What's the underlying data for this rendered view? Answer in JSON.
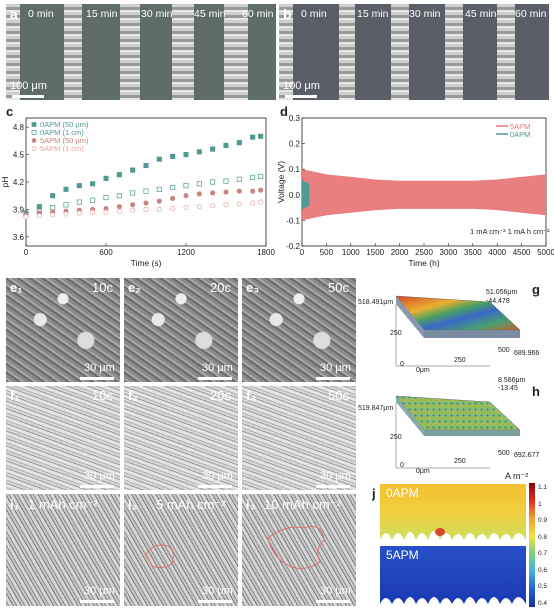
{
  "panel_a": {
    "label": "a",
    "times": [
      "0 min",
      "15 min",
      "30 min",
      "45 min",
      "60 min"
    ],
    "scale": "100 μm"
  },
  "panel_b": {
    "label": "b",
    "times": [
      "0 min",
      "15 min",
      "30 min",
      "45 min",
      "60 min"
    ],
    "scale": "100 μm"
  },
  "panel_c": {
    "label": "c"
  },
  "panel_d": {
    "label": "d",
    "note": "1 mA cm⁻² 1 mA h cm⁻²"
  },
  "panel_e": {
    "labels": [
      "e₁",
      "e₂",
      "e₃"
    ],
    "cycles": [
      "10c",
      "20c",
      "50c"
    ],
    "scale": "30 μm"
  },
  "panel_f": {
    "labels": [
      "f₁",
      "f₂",
      "f₃"
    ],
    "cycles": [
      "10c",
      "20c",
      "50c"
    ],
    "scale": "30 μm"
  },
  "panel_i": {
    "labels": [
      "i₁",
      "i₂",
      "i₃"
    ],
    "cycles": [
      "1 mAh cm⁻²",
      "5 mAh cm⁻²",
      "10 mAh cm⁻²"
    ],
    "scale": "30 μm"
  },
  "panel_g": {
    "label": "g",
    "z_top": "51.056μm",
    "z_bot": "-44.478",
    "y_max": "518.491μm",
    "x_max": "689.966",
    "y_mid": "250",
    "x_mid": "250",
    "x_end": "500",
    "origin": "0",
    "origin_unit": "0μm"
  },
  "panel_h": {
    "label": "h",
    "z_top": "8.586μm",
    "z_bot": "-13.45",
    "y_max": "519.847μm",
    "x_max": "692.677",
    "y_mid": "250",
    "x_mid": "250",
    "x_end": "500",
    "origin": "0",
    "origin_unit": "0μm"
  },
  "panel_j": {
    "label": "j",
    "top": "0APM",
    "bottom": "5APM",
    "unit": "A m⁻²",
    "scale_ticks": [
      "1.1",
      "1",
      "0.9",
      "0.8",
      "0.7",
      "0.6",
      "0.5",
      "0.4"
    ]
  },
  "chart_data": [
    {
      "type": "scatter",
      "panel": "c",
      "xlabel": "Time (s)",
      "ylabel": "pH",
      "xlim": [
        0,
        1800
      ],
      "ylim": [
        3.5,
        4.9
      ],
      "xticks": [
        0,
        600,
        1200,
        1800
      ],
      "yticks": [
        3.6,
        3.9,
        4.2,
        4.5,
        4.8
      ],
      "legend": "top-left",
      "series": [
        {
          "name": "0APM (50 μm)",
          "color": "#4e9a92",
          "marker": "square-filled",
          "x": [
            0,
            100,
            200,
            300,
            400,
            500,
            600,
            700,
            800,
            900,
            1000,
            1100,
            1200,
            1300,
            1400,
            1500,
            1600,
            1700,
            1760
          ],
          "y": [
            3.86,
            3.93,
            4.05,
            4.12,
            4.16,
            4.18,
            4.24,
            4.28,
            4.33,
            4.38,
            4.45,
            4.48,
            4.5,
            4.53,
            4.56,
            4.6,
            4.63,
            4.69,
            4.7
          ]
        },
        {
          "name": "0APM (1 cm)",
          "color": "#4e9a92",
          "marker": "square-open",
          "x": [
            0,
            100,
            200,
            300,
            400,
            500,
            600,
            700,
            800,
            900,
            1000,
            1100,
            1200,
            1300,
            1400,
            1500,
            1600,
            1700,
            1760
          ],
          "y": [
            3.84,
            3.88,
            3.92,
            3.95,
            3.98,
            4.0,
            4.03,
            4.05,
            4.08,
            4.1,
            4.12,
            4.14,
            4.16,
            4.18,
            4.2,
            4.21,
            4.23,
            4.25,
            4.26
          ]
        },
        {
          "name": "5APM (50 μm)",
          "color": "#c9837e",
          "marker": "circle-filled",
          "x": [
            0,
            100,
            200,
            300,
            400,
            500,
            600,
            700,
            800,
            900,
            1000,
            1100,
            1200,
            1300,
            1400,
            1500,
            1600,
            1700,
            1760
          ],
          "y": [
            3.84,
            3.86,
            3.87,
            3.88,
            3.89,
            3.9,
            3.91,
            3.93,
            3.95,
            3.97,
            3.99,
            4.02,
            4.05,
            4.07,
            4.08,
            4.09,
            4.1,
            4.1,
            4.11
          ]
        },
        {
          "name": "5APM (1 cm)",
          "color": "#f0a0a0",
          "marker": "circle-open",
          "x": [
            0,
            100,
            200,
            300,
            400,
            500,
            600,
            700,
            800,
            900,
            1000,
            1100,
            1200,
            1300,
            1400,
            1500,
            1600,
            1700,
            1760
          ],
          "y": [
            3.82,
            3.83,
            3.84,
            3.85,
            3.86,
            3.87,
            3.87,
            3.88,
            3.89,
            3.9,
            3.9,
            3.91,
            3.92,
            3.93,
            3.94,
            3.95,
            3.96,
            3.97,
            3.98
          ]
        }
      ]
    },
    {
      "type": "line",
      "panel": "d",
      "xlabel": "Time (h)",
      "ylabel": "Voltage (V)",
      "xlim": [
        0,
        5000
      ],
      "ylim": [
        -0.2,
        0.3
      ],
      "xticks": [
        0,
        500,
        1000,
        1500,
        2000,
        2500,
        3000,
        3500,
        4000,
        4500,
        5000
      ],
      "yticks": [
        -0.2,
        -0.1,
        0.0,
        0.1,
        0.2,
        0.3
      ],
      "legend": "top-right",
      "series": [
        {
          "name": "5APM",
          "color": "#e87878",
          "type": "envelope",
          "x": [
            0,
            250,
            500,
            1000,
            1500,
            2000,
            2500,
            3000,
            3500,
            4000,
            4500,
            5000
          ],
          "upper": [
            0.1,
            0.09,
            0.08,
            0.07,
            0.06,
            0.055,
            0.055,
            0.055,
            0.055,
            0.06,
            0.07,
            0.08
          ],
          "lower": [
            -0.1,
            -0.09,
            -0.08,
            -0.07,
            -0.06,
            -0.055,
            -0.055,
            -0.055,
            -0.055,
            -0.06,
            -0.07,
            -0.08
          ]
        },
        {
          "name": "0APM",
          "color": "#4e9a92",
          "type": "envelope",
          "x": [
            0,
            50,
            100,
            150
          ],
          "upper": [
            0.06,
            0.05,
            0.05,
            0.04
          ],
          "lower": [
            -0.06,
            -0.05,
            -0.05,
            -0.04
          ]
        }
      ]
    }
  ]
}
